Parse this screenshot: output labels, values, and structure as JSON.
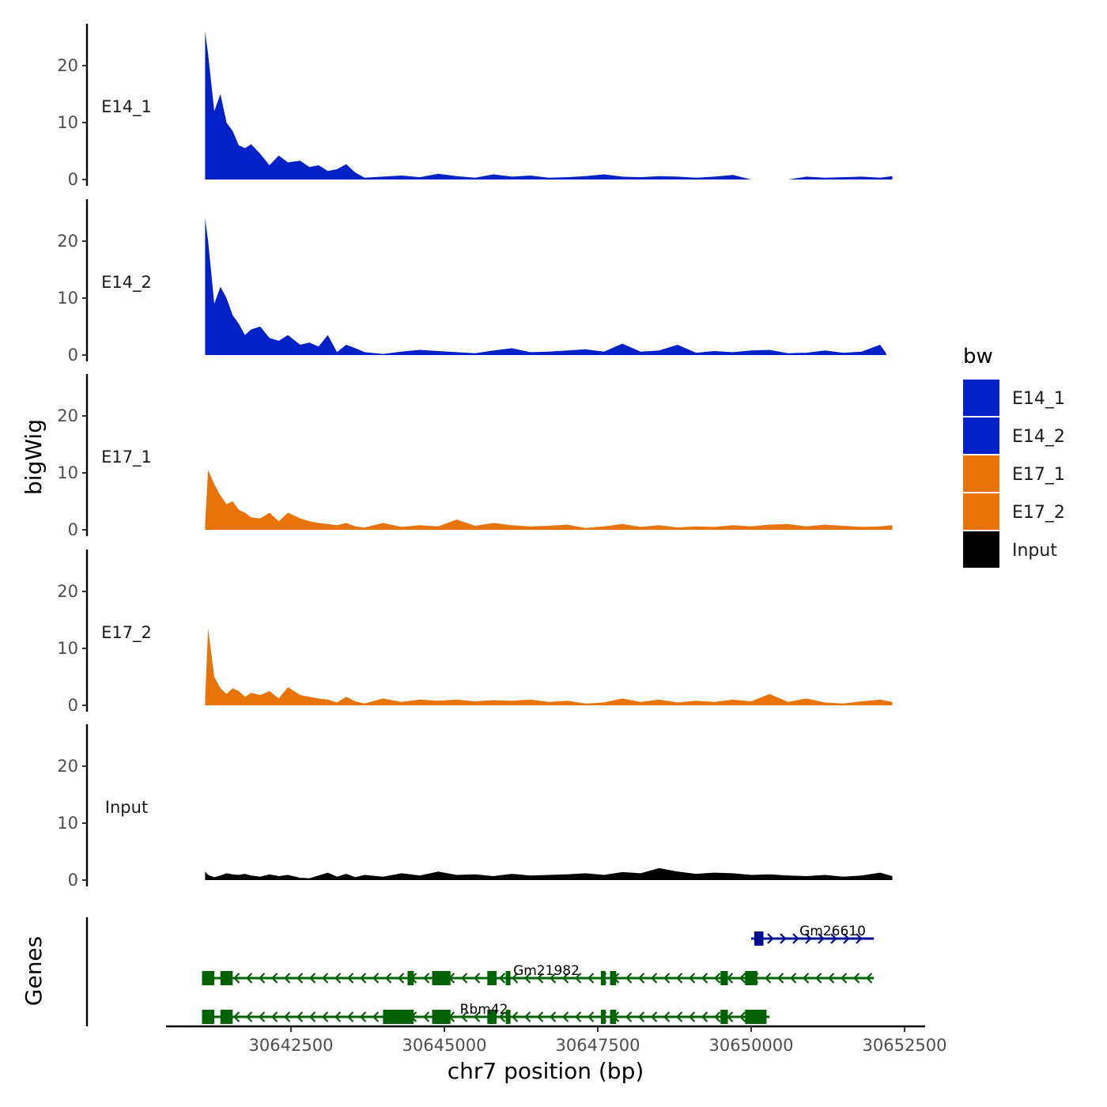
{
  "chart_data": {
    "type": "area",
    "ylabel": "bigWig",
    "xlabel": "chr7 position (bp)",
    "genes_label": "Genes",
    "xlim": [
      30640200,
      30652600
    ],
    "x_ticks": [
      30642500,
      30645000,
      30647500,
      30650000,
      30652500
    ],
    "x_tick_labels": [
      "30642500",
      "30645000",
      "30647500",
      "30650000",
      "30652500"
    ],
    "ylim": [
      0,
      28
    ],
    "y_ticks": [
      0,
      10,
      20
    ],
    "y_tick_labels": [
      "0",
      "10",
      "20"
    ],
    "legend": {
      "title": "bw",
      "position": "right"
    },
    "tracks": [
      {
        "name": "E14_1",
        "color": "#0020C8",
        "x": [
          30641100,
          30641150,
          30641250,
          30641350,
          30641450,
          30641550,
          30641650,
          30641750,
          30641850,
          30642000,
          30642150,
          30642300,
          30642450,
          30642650,
          30642800,
          30642950,
          30643100,
          30643250,
          30643400,
          30643550,
          30643700,
          30644000,
          30644300,
          30644600,
          30644900,
          30645200,
          30645500,
          30645800,
          30646100,
          30646400,
          30646700,
          30647000,
          30647300,
          30647600,
          30647900,
          30648200,
          30648500,
          30648800,
          30649100,
          30649400,
          30649700,
          30650000,
          30650300,
          30650600,
          30650900,
          30651200,
          30651500,
          30651800,
          30652100,
          30652300
        ],
        "values": [
          26,
          22,
          12,
          15,
          10,
          8.5,
          6,
          5.5,
          6.2,
          4.5,
          2.5,
          4.2,
          3,
          3.3,
          2.2,
          2.5,
          1.5,
          1.8,
          2.7,
          1.2,
          0.3,
          0.5,
          0.7,
          0.4,
          1,
          0.6,
          0.3,
          0.9,
          0.5,
          0.7,
          0.3,
          0.4,
          0.6,
          0.9,
          0.5,
          0.4,
          0.6,
          0.5,
          0.3,
          0.5,
          0.8,
          0,
          0,
          0,
          0.5,
          0.3,
          0.4,
          0.5,
          0.3,
          0.6
        ]
      },
      {
        "name": "E14_2",
        "color": "#0020C8",
        "x": [
          30641100,
          30641150,
          30641250,
          30641350,
          30641450,
          30641550,
          30641650,
          30641750,
          30641850,
          30642000,
          30642150,
          30642300,
          30642450,
          30642650,
          30642800,
          30642950,
          30643100,
          30643250,
          30643400,
          30643550,
          30643700,
          30644000,
          30644300,
          30644600,
          30644900,
          30645200,
          30645500,
          30645800,
          30646100,
          30646400,
          30646700,
          30647000,
          30647300,
          30647600,
          30647900,
          30648200,
          30648500,
          30648800,
          30649100,
          30649400,
          30649700,
          30650000,
          30650300,
          30650600,
          30650900,
          30651200,
          30651500,
          30651800,
          30652100,
          30652200
        ],
        "values": [
          24,
          20,
          9,
          12,
          10,
          7,
          5.5,
          3.5,
          4.5,
          5,
          3,
          2.5,
          3.5,
          1.8,
          2.2,
          1.5,
          3.5,
          0.5,
          1.8,
          1.2,
          0.5,
          0.2,
          0.6,
          0.9,
          0.7,
          0.5,
          0.3,
          0.8,
          1.2,
          0.5,
          0.6,
          0.8,
          1,
          0.6,
          2,
          0.6,
          0.8,
          1.8,
          0.4,
          0.7,
          0.5,
          0.8,
          0.9,
          0.3,
          0.4,
          0.8,
          0.4,
          0.6,
          1.8,
          0.3
        ]
      },
      {
        "name": "E17_1",
        "color": "#E87408",
        "x": [
          30641100,
          30641150,
          30641250,
          30641350,
          30641450,
          30641550,
          30641650,
          30641750,
          30641850,
          30642000,
          30642150,
          30642300,
          30642450,
          30642650,
          30642800,
          30642950,
          30643100,
          30643250,
          30643400,
          30643550,
          30643700,
          30644000,
          30644300,
          30644600,
          30644900,
          30645200,
          30645500,
          30645800,
          30646100,
          30646400,
          30646700,
          30647000,
          30647300,
          30647600,
          30647900,
          30648200,
          30648500,
          30648800,
          30649100,
          30649400,
          30649700,
          30650000,
          30650300,
          30650600,
          30650900,
          30651200,
          30651500,
          30651800,
          30652100,
          30652300
        ],
        "values": [
          1,
          10.5,
          8,
          6,
          4.5,
          5,
          3.5,
          3,
          2.2,
          2,
          3,
          1.5,
          3,
          2,
          1.5,
          1.2,
          1,
          0.8,
          1.2,
          0.6,
          0.4,
          1.2,
          0.5,
          0.8,
          0.6,
          1.8,
          0.7,
          1.2,
          0.8,
          0.6,
          0.7,
          0.9,
          0.3,
          0.6,
          1,
          0.5,
          0.8,
          0.4,
          0.6,
          0.5,
          0.8,
          0.6,
          0.9,
          1,
          0.6,
          0.9,
          0.7,
          0.5,
          0.6,
          0.8
        ]
      },
      {
        "name": "E17_2",
        "color": "#E87408",
        "x": [
          30641100,
          30641150,
          30641250,
          30641350,
          30641450,
          30641550,
          30641650,
          30641750,
          30641850,
          30642000,
          30642150,
          30642300,
          30642450,
          30642650,
          30642800,
          30642950,
          30643100,
          30643250,
          30643400,
          30643550,
          30643700,
          30644000,
          30644300,
          30644600,
          30644900,
          30645200,
          30645500,
          30645800,
          30646100,
          30646400,
          30646700,
          30647000,
          30647300,
          30647600,
          30647900,
          30648200,
          30648500,
          30648800,
          30649100,
          30649400,
          30649700,
          30650000,
          30650300,
          30650600,
          30650900,
          30651200,
          30651500,
          30651800,
          30652100,
          30652300
        ],
        "values": [
          1,
          13.5,
          5,
          3,
          2,
          3,
          2.5,
          1.5,
          2.2,
          1.8,
          2.5,
          1.2,
          3.2,
          1.8,
          1.5,
          1.2,
          1,
          0.5,
          1.5,
          0.7,
          0.3,
          1.2,
          0.6,
          1,
          0.8,
          1,
          0.7,
          0.9,
          0.8,
          1,
          0.6,
          0.8,
          0.3,
          0.5,
          1.2,
          0.6,
          1,
          0.5,
          0.8,
          0.6,
          1,
          0.7,
          2,
          0.6,
          1.2,
          0.5,
          0.3,
          0.7,
          1,
          0.6
        ]
      },
      {
        "name": "Input",
        "color": "#000000",
        "x": [
          30641100,
          30641150,
          30641250,
          30641350,
          30641450,
          30641550,
          30641650,
          30641750,
          30641850,
          30642000,
          30642150,
          30642300,
          30642450,
          30642650,
          30642800,
          30642950,
          30643100,
          30643250,
          30643400,
          30643550,
          30643700,
          30644000,
          30644300,
          30644600,
          30644900,
          30645200,
          30645500,
          30645800,
          30646100,
          30646400,
          30646700,
          30647000,
          30647300,
          30647600,
          30647900,
          30648200,
          30648500,
          30648800,
          30649100,
          30649400,
          30649700,
          30650000,
          30650300,
          30650600,
          30650900,
          30651200,
          30651500,
          30651800,
          30652100,
          30652300
        ],
        "values": [
          1.5,
          0.9,
          0.5,
          0.8,
          1.2,
          1,
          0.9,
          1.1,
          0.8,
          0.6,
          1,
          0.7,
          0.9,
          0.4,
          0.3,
          0.8,
          1.3,
          0.6,
          1.1,
          0.5,
          0.9,
          0.6,
          1.2,
          0.8,
          1.5,
          0.9,
          1,
          0.7,
          1.1,
          0.8,
          0.9,
          1,
          1.2,
          0.9,
          1.4,
          1.2,
          2.1,
          1.5,
          1.1,
          1.3,
          1.2,
          0.9,
          1,
          0.8,
          0.7,
          0.9,
          0.6,
          0.8,
          1.3,
          0.7
        ]
      }
    ],
    "genes": [
      {
        "name": "Gm26610",
        "strand": "+",
        "start": 30650000,
        "end": 30652000,
        "color": "#000C90",
        "exons": [
          [
            30650050,
            30650200
          ]
        ]
      },
      {
        "name": "Gm21982",
        "strand": "-",
        "start": 30641050,
        "end": 30652000,
        "color": "#006200",
        "exons": [
          [
            30641050,
            30641250
          ],
          [
            30641350,
            30641550
          ],
          [
            30644400,
            30644500
          ],
          [
            30644800,
            30645100
          ],
          [
            30645700,
            30645850
          ],
          [
            30646000,
            30646060
          ],
          [
            30647550,
            30647620
          ],
          [
            30647700,
            30647800
          ],
          [
            30649500,
            30649620
          ],
          [
            30649900,
            30650100
          ]
        ]
      },
      {
        "name": "Rbm42",
        "strand": "-",
        "start": 30641050,
        "end": 30650300,
        "color": "#006200",
        "exons": [
          [
            30641050,
            30641250
          ],
          [
            30641350,
            30641550
          ],
          [
            30644000,
            30644500
          ],
          [
            30644800,
            30645100
          ],
          [
            30645700,
            30645850
          ],
          [
            30646000,
            30646060
          ],
          [
            30647550,
            30647620
          ],
          [
            30647700,
            30647800
          ],
          [
            30649500,
            30649620
          ],
          [
            30649900,
            30650250
          ]
        ]
      }
    ]
  }
}
